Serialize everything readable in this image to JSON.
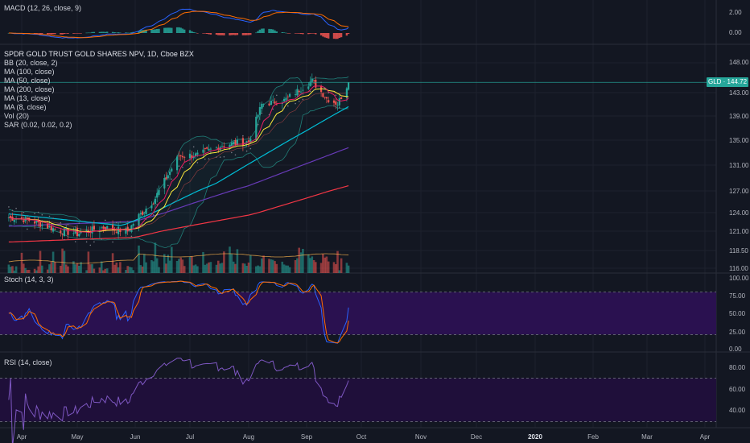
{
  "panels": {
    "macd": {
      "label": "MACD (12, 26, close, 9)",
      "ticks": [
        "2.00",
        "0.00"
      ],
      "tick_values": [
        2,
        0
      ],
      "range": [
        -1.2,
        3.6
      ]
    },
    "price": {
      "legend": {
        "title": "SPDR GOLD TRUST GOLD SHARES NPV, 1D, Cboe BZX",
        "indicators": [
          "BB (20, close, 2)",
          "MA (100, close)",
          "MA (50, close)",
          "MA (200, close)",
          "MA (13, close)",
          "MA (8, close)",
          "Vol (20)",
          "SAR (0.02, 0.02, 0.2)"
        ]
      },
      "ticks": [
        "148.00",
        "143.00",
        "139.00",
        "135.00",
        "131.00",
        "127.00",
        "124.00",
        "121.00",
        "118.50",
        "116.00"
      ],
      "tick_values": [
        148,
        143,
        139,
        135,
        131,
        127,
        124,
        121,
        118.5,
        116
      ],
      "last_price_tag": "GLD · 144.72",
      "last_price": 144.72
    },
    "stoch": {
      "label": "Stoch (14, 3, 3)",
      "ticks": [
        "100.00",
        "75.00",
        "50.00",
        "25.00",
        "0.00"
      ],
      "tick_values": [
        100,
        75,
        50,
        25,
        0
      ],
      "bands": [
        80,
        20
      ]
    },
    "rsi": {
      "label": "RSI (14, close)",
      "ticks": [
        "80.00",
        "60.00",
        "40.00"
      ],
      "tick_values": [
        80,
        60,
        40
      ],
      "bands": [
        70,
        30
      ],
      "range": [
        28,
        95
      ]
    }
  },
  "x_axis": {
    "labels": [
      {
        "text": "Apr",
        "bold": false
      },
      {
        "text": "May",
        "bold": false
      },
      {
        "text": "Jun",
        "bold": false
      },
      {
        "text": "Jul",
        "bold": false
      },
      {
        "text": "Aug",
        "bold": false
      },
      {
        "text": "Sep",
        "bold": false
      },
      {
        "text": "Oct",
        "bold": false
      },
      {
        "text": "Nov",
        "bold": false
      },
      {
        "text": "Dec",
        "bold": false
      },
      {
        "text": "2020",
        "bold": true
      },
      {
        "text": "Feb",
        "bold": false
      },
      {
        "text": "Mar",
        "bold": false
      },
      {
        "text": "Apr",
        "bold": false
      }
    ]
  },
  "colors": {
    "background": "#131722",
    "grid": "#1e222d",
    "up": "#26a69a",
    "down": "#ef5350",
    "bb": "#26a69a",
    "ma8": "#e91e63",
    "ma13": "#ffeb3b",
    "ma50": "#00bcd4",
    "ma100": "#673ab7",
    "ma200": "#f23645",
    "sar": "#787b86",
    "macd_line": "#2962ff",
    "macd_signal": "#ff6d00",
    "stoch_k": "#2962ff",
    "stoch_d": "#ff6d00",
    "band_fill": "#2a1150",
    "rsi_line": "#7e57c2",
    "rsi_fill": "#1f0f3a"
  },
  "chart_data": {
    "type": "line",
    "x_range": [
      "Mar 2019",
      "Apr 2020"
    ],
    "note": "",
    "close_anchors": [
      {
        "date": "2019-03-25",
        "close": 123.2
      },
      {
        "date": "2019-04-05",
        "close": 122.8
      },
      {
        "date": "2019-04-20",
        "close": 121.2
      },
      {
        "date": "2019-05-01",
        "close": 120.7
      },
      {
        "date": "2019-05-15",
        "close": 121.6
      },
      {
        "date": "2019-05-28",
        "close": 121.0
      },
      {
        "date": "2019-06-03",
        "close": 123.5
      },
      {
        "date": "2019-06-12",
        "close": 126.0
      },
      {
        "date": "2019-06-25",
        "close": 132.5
      },
      {
        "date": "2019-07-05",
        "close": 132.6
      },
      {
        "date": "2019-07-18",
        "close": 134.2
      },
      {
        "date": "2019-08-01",
        "close": 134.8
      },
      {
        "date": "2019-08-08",
        "close": 141.0
      },
      {
        "date": "2019-08-20",
        "close": 141.7
      },
      {
        "date": "2019-09-04",
        "close": 145.0
      },
      {
        "date": "2019-09-12",
        "close": 142.0
      },
      {
        "date": "2019-09-18",
        "close": 141.1
      },
      {
        "date": "2019-09-24",
        "close": 144.7
      }
    ],
    "ma200_anchors": [
      {
        "date": "2019-03-25",
        "value": 119.6
      },
      {
        "date": "2019-06-01",
        "value": 120.2
      },
      {
        "date": "2019-08-01",
        "value": 123.6
      },
      {
        "date": "2019-09-24",
        "value": 127.8
      }
    ],
    "ma100_anchors": [
      {
        "date": "2019-03-25",
        "value": 121.8
      },
      {
        "date": "2019-06-01",
        "value": 122.6
      },
      {
        "date": "2019-08-01",
        "value": 127.8
      },
      {
        "date": "2019-09-24",
        "value": 133.8
      }
    ],
    "ma50_anchors": [
      {
        "date": "2019-03-25",
        "value": 123.8
      },
      {
        "date": "2019-05-25",
        "value": 121.9
      },
      {
        "date": "2019-07-15",
        "value": 128.2
      },
      {
        "date": "2019-08-20",
        "value": 134.5
      },
      {
        "date": "2019-09-24",
        "value": 140.6
      }
    ]
  }
}
